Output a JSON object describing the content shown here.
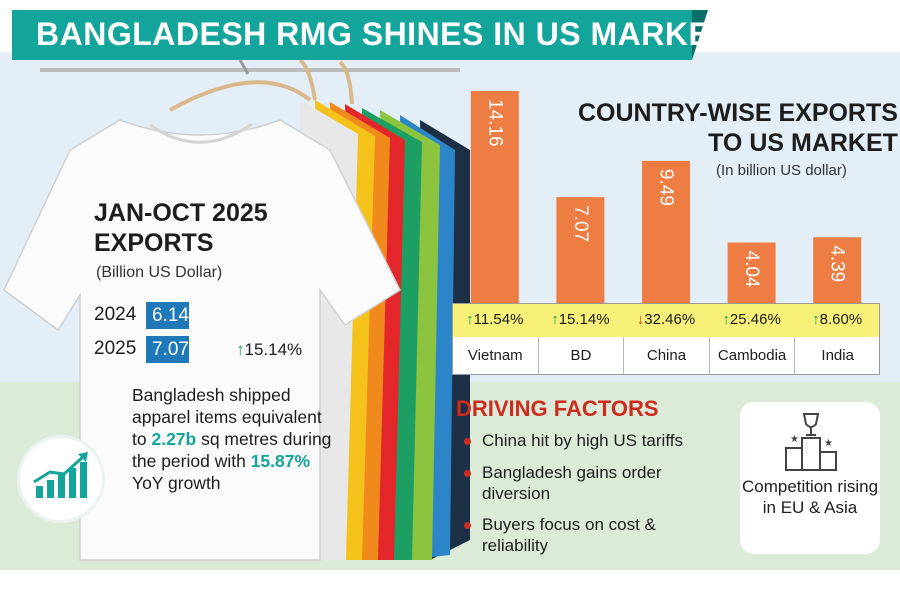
{
  "title": "BANGLADESH RMG SHINES IN US MARKET",
  "exports_panel": {
    "heading": "JAN-OCT 2025 EXPORTS",
    "heading_line1": "JAN-OCT 2025",
    "heading_line2": "EXPORTS",
    "unit": "(Billion US Dollar)",
    "rows": [
      {
        "year": "2024",
        "value": "6.14"
      },
      {
        "year": "2025",
        "value": "7.07"
      }
    ],
    "growth": "15.14%",
    "note_parts": [
      "Bangladesh shipped apparel items equivalent to ",
      "2.27b",
      " sq metres during the period with ",
      "15.87%",
      " YoY growth"
    ]
  },
  "chart_data": {
    "type": "bar",
    "title": "COUNTRY-WISE EXPORTS TO US MARKET",
    "title_line1": "COUNTRY-WISE EXPORTS",
    "title_line2": "TO US MARKET",
    "subtitle": "(In billion US dollar)",
    "categories": [
      "Vietnam",
      "BD",
      "China",
      "Cambodia",
      "India"
    ],
    "values": [
      14.16,
      7.07,
      9.49,
      4.04,
      4.39
    ],
    "value_labels": [
      "14.16",
      "7.07",
      "9.49",
      "4.04",
      "4.39"
    ],
    "growth": [
      {
        "direction": "up",
        "value": "11.54%"
      },
      {
        "direction": "up",
        "value": "15.14%"
      },
      {
        "direction": "down",
        "value": "32.46%"
      },
      {
        "direction": "up",
        "value": "25.46%"
      },
      {
        "direction": "up",
        "value": "8.60%"
      }
    ],
    "bar_color": "#ee7d43",
    "ylim": [
      0,
      14.16
    ]
  },
  "driving_factors": {
    "title": "DRIVING FACTORS",
    "items": [
      "China hit by high US tariffs",
      "Bangladesh gains order diversion",
      "Buyers focus on cost & reliability"
    ]
  },
  "competition": "Competition rising in EU & Asia",
  "colors": {
    "teal": "#13a59c",
    "orange": "#ee7d43",
    "blue": "#1f78b7",
    "red": "#cc2b1f",
    "green": "#18a44a"
  },
  "icons": [
    "growth-chart-icon",
    "podium-trophy-icon",
    "up-arrow-icon",
    "down-arrow-icon"
  ]
}
